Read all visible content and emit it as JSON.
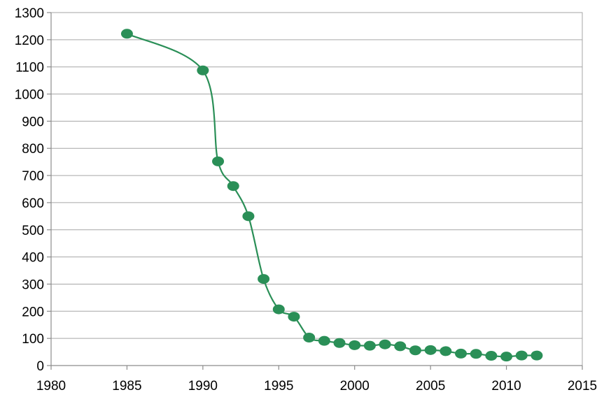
{
  "colors": {
    "series": "#2a8f57",
    "grid": "#a6a6a6",
    "axis": "#8c8c8c",
    "text": "#000000"
  },
  "chart_data": {
    "type": "line",
    "title": "",
    "xlabel": "",
    "ylabel": "",
    "xlim": [
      1980,
      2015
    ],
    "ylim": [
      0,
      1300
    ],
    "xticks": [
      "1980",
      "1985",
      "1990",
      "1995",
      "2000",
      "2005",
      "2010",
      "2015"
    ],
    "yticks": [
      "0",
      "100",
      "200",
      "300",
      "400",
      "500",
      "600",
      "700",
      "800",
      "900",
      "1000",
      "1100",
      "1200",
      "1300"
    ],
    "grid": "horizontal",
    "legend": "none",
    "series": [
      {
        "x": [
          1985,
          1990,
          1991,
          1992,
          1993,
          1994,
          1995,
          1996,
          1997,
          1998,
          1999,
          2000,
          2001,
          2002,
          2003,
          2004,
          2005,
          2006,
          2007,
          2008,
          2009,
          2010,
          2011,
          2012
        ],
        "y": [
          1222,
          1087,
          752,
          661,
          550,
          319,
          207,
          180,
          103,
          91,
          83,
          75,
          73,
          78,
          71,
          56,
          57,
          53,
          44,
          43,
          36,
          33,
          37,
          37
        ]
      }
    ]
  }
}
